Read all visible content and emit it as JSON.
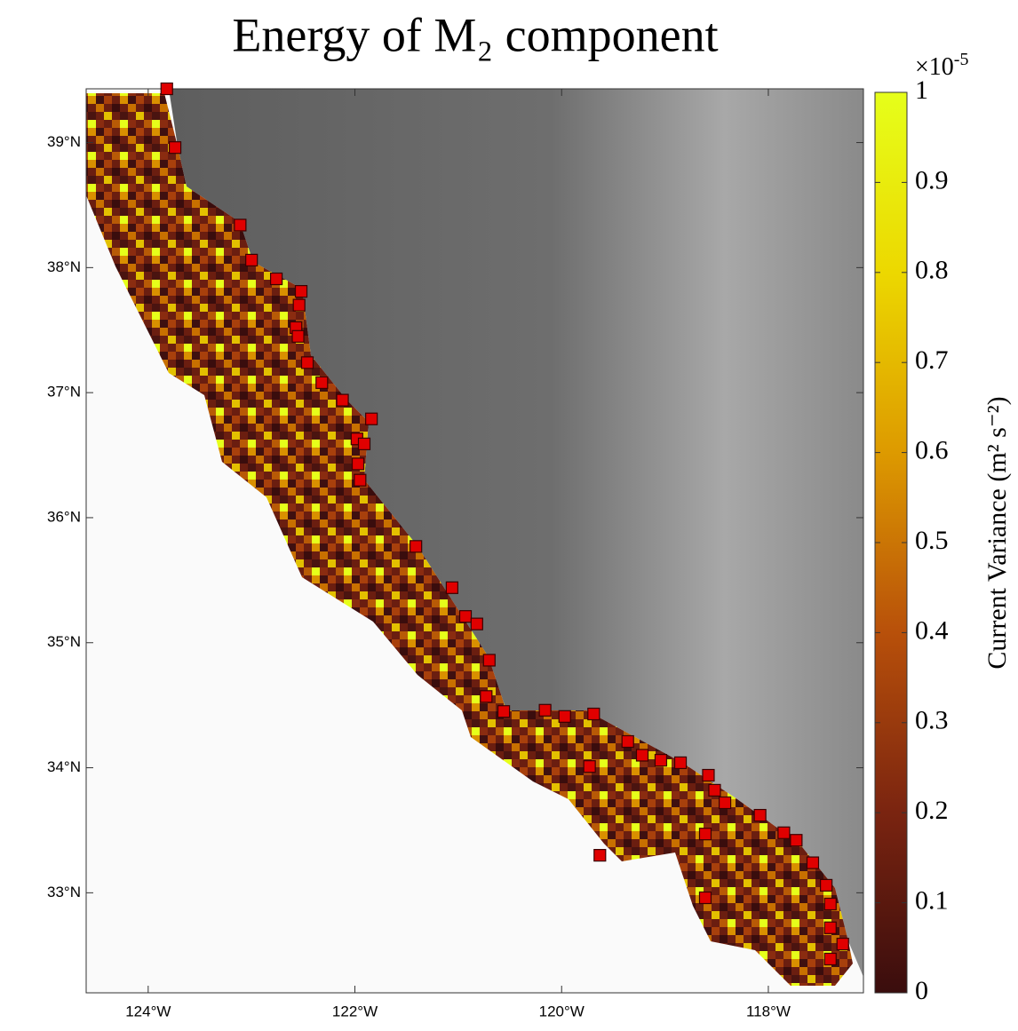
{
  "chart_data": {
    "type": "map",
    "title": "Energy of M₂ component",
    "xlim": [
      -124.6,
      -117.08
    ],
    "ylim": [
      32.2,
      39.43
    ],
    "xticks": [
      {
        "value": -124,
        "label": "124°W"
      },
      {
        "value": -122,
        "label": "122°W"
      },
      {
        "value": -120,
        "label": "120°W"
      },
      {
        "value": -118,
        "label": "118°W"
      }
    ],
    "yticks": [
      {
        "value": 33,
        "label": "33°N"
      },
      {
        "value": 34,
        "label": "34°N"
      },
      {
        "value": 35,
        "label": "35°N"
      },
      {
        "value": 36,
        "label": "36°N"
      },
      {
        "value": 37,
        "label": "37°N"
      },
      {
        "value": 38,
        "label": "38°N"
      },
      {
        "value": 39,
        "label": "39°N"
      }
    ],
    "colorbar": {
      "label": "Current Variance (m² s⁻²)",
      "multiplier": "×10",
      "multiplier_exponent": "-5",
      "clim": [
        0,
        1
      ],
      "ticks": [
        0,
        0.1,
        0.2,
        0.3,
        0.4,
        0.5,
        0.6,
        0.7,
        0.8,
        0.9,
        1
      ],
      "colors": [
        "#3a0d0d",
        "#7a2410",
        "#b8500a",
        "#dd9a00",
        "#ecd800",
        "#e6ff1a"
      ]
    },
    "stations": {
      "color": "#e00000",
      "lon": [
        -123.82,
        -123.74,
        -123.11,
        -123.0,
        -122.76,
        -122.52,
        -122.54,
        -122.57,
        -122.55,
        -122.46,
        -122.32,
        -122.12,
        -121.84,
        -121.98,
        -121.91,
        -121.97,
        -121.95,
        -121.41,
        -121.06,
        -120.93,
        -120.82,
        -120.7,
        -120.73,
        -120.56,
        -120.16,
        -119.97,
        -119.69,
        -119.73,
        -119.36,
        -119.22,
        -119.04,
        -118.85,
        -118.58,
        -118.52,
        -118.42,
        -118.08,
        -117.85,
        -117.73,
        -117.57,
        -118.61,
        -119.63,
        -117.44,
        -117.4,
        -117.4,
        -117.28,
        -117.4,
        -118.61
      ],
      "lat": [
        39.43,
        38.96,
        38.34,
        38.06,
        37.91,
        37.81,
        37.7,
        37.52,
        37.45,
        37.24,
        37.08,
        36.94,
        36.79,
        36.63,
        36.59,
        36.43,
        36.3,
        35.77,
        35.44,
        35.21,
        35.15,
        34.86,
        34.57,
        34.45,
        34.46,
        34.41,
        34.43,
        34.01,
        34.21,
        34.1,
        34.06,
        34.04,
        33.94,
        33.82,
        33.72,
        33.62,
        33.48,
        33.42,
        33.24,
        33.47,
        33.3,
        33.06,
        32.91,
        32.72,
        32.59,
        32.47,
        32.96
      ]
    }
  }
}
